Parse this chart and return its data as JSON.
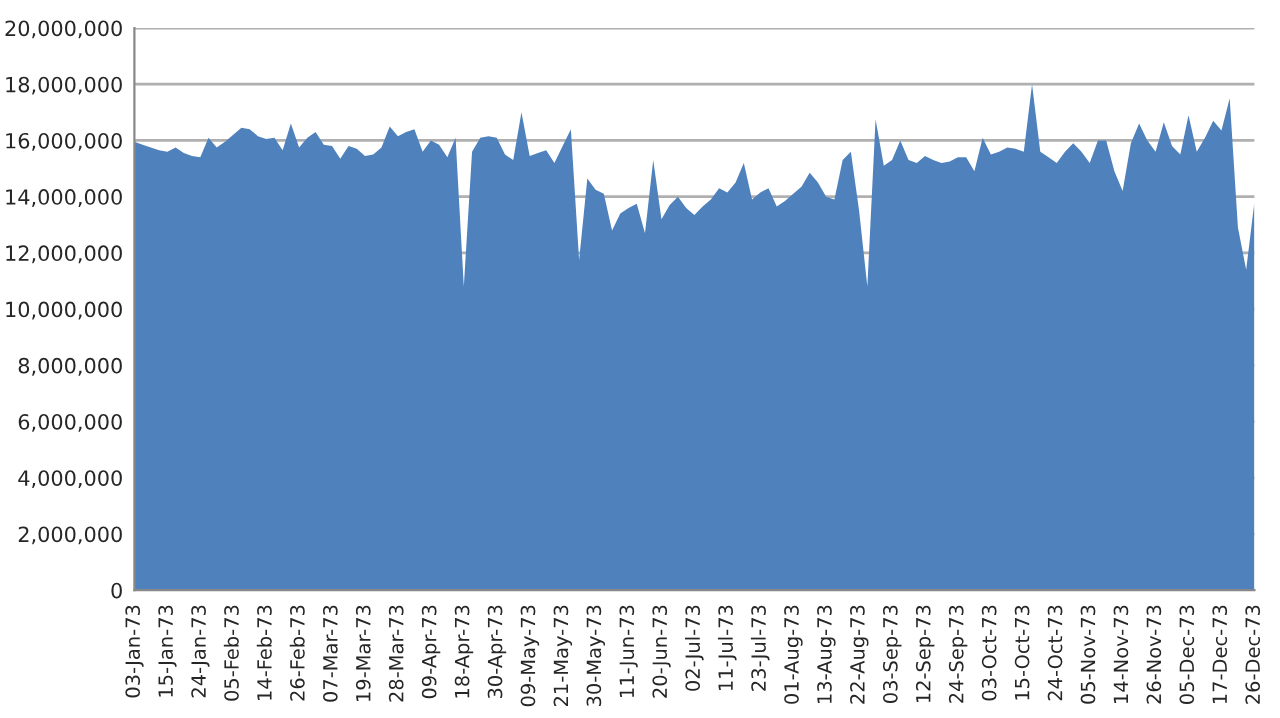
{
  "chart_data": {
    "type": "area",
    "categories": [
      "03-Jan-73",
      null,
      null,
      null,
      "15-Jan-73",
      null,
      null,
      null,
      "24-Jan-73",
      null,
      null,
      null,
      "05-Feb-73",
      null,
      null,
      null,
      "14-Feb-73",
      null,
      null,
      null,
      "26-Feb-73",
      null,
      null,
      null,
      "07-Mar-73",
      null,
      null,
      null,
      "19-Mar-73",
      null,
      null,
      null,
      "28-Mar-73",
      null,
      null,
      null,
      "09-Apr-73",
      null,
      null,
      null,
      "18-Apr-73",
      null,
      null,
      null,
      "30-Apr-73",
      null,
      null,
      null,
      "09-May-73",
      null,
      null,
      null,
      "21-May-73",
      null,
      null,
      null,
      "30-May-73",
      null,
      null,
      null,
      "11-Jun-73",
      null,
      null,
      null,
      "20-Jun-73",
      null,
      null,
      null,
      "02-Jul-73",
      null,
      null,
      null,
      "11-Jul-73",
      null,
      null,
      null,
      "23-Jul-73",
      null,
      null,
      null,
      "01-Aug-73",
      null,
      null,
      null,
      "13-Aug-73",
      null,
      null,
      null,
      "22-Aug-73",
      null,
      null,
      null,
      "03-Sep-73",
      null,
      null,
      null,
      "12-Sep-73",
      null,
      null,
      null,
      "24-Sep-73",
      null,
      null,
      null,
      "03-Oct-73",
      null,
      null,
      null,
      "15-Oct-73",
      null,
      null,
      null,
      "24-Oct-73",
      null,
      null,
      null,
      "05-Nov-73",
      null,
      null,
      null,
      "14-Nov-73",
      null,
      null,
      null,
      "26-Nov-73",
      null,
      null,
      null,
      "05-Dec-73",
      null,
      null,
      null,
      "17-Dec-73",
      null,
      null,
      null,
      "26-Dec-73"
    ],
    "series": [
      {
        "color": "#4f81bd",
        "values": [
          15950000,
          15850000,
          15750000,
          15650000,
          15600000,
          15750000,
          15550000,
          15450000,
          15400000,
          16100000,
          15750000,
          15950000,
          16200000,
          16450000,
          16400000,
          16150000,
          16050000,
          16100000,
          15650000,
          16600000,
          15750000,
          16100000,
          16300000,
          15850000,
          15800000,
          15350000,
          15800000,
          15700000,
          15450000,
          15500000,
          15750000,
          16500000,
          16150000,
          16300000,
          16400000,
          15600000,
          16000000,
          15850000,
          15400000,
          16100000,
          10800000,
          15600000,
          16100000,
          16150000,
          16100000,
          15500000,
          15300000,
          17000000,
          15450000,
          15550000,
          15650000,
          15200000,
          15800000,
          16400000,
          11750000,
          14650000,
          14250000,
          14100000,
          12800000,
          13400000,
          13600000,
          13750000,
          12700000,
          15300000,
          13200000,
          13700000,
          14000000,
          13600000,
          13350000,
          13650000,
          13900000,
          14300000,
          14150000,
          14500000,
          15200000,
          13900000,
          14150000,
          14300000,
          13650000,
          13850000,
          14100000,
          14350000,
          14850000,
          14500000,
          14000000,
          13900000,
          15300000,
          15600000,
          13500000,
          10800000,
          16750000,
          15100000,
          15300000,
          16000000,
          15300000,
          15200000,
          15450000,
          15300000,
          15200000,
          15250000,
          15400000,
          15400000,
          14900000,
          16100000,
          15500000,
          15600000,
          15750000,
          15700000,
          15600000,
          18000000,
          15600000,
          15400000,
          15200000,
          15600000,
          15900000,
          15600000,
          15200000,
          16000000,
          16000000,
          14900000,
          14200000,
          15900000,
          16600000,
          16000000,
          15600000,
          16650000,
          15800000,
          15500000,
          16900000,
          15600000,
          16100000,
          16700000,
          16350000,
          17500000,
          12900000,
          11400000,
          13800000
        ]
      }
    ],
    "ylim": [
      0,
      20000000
    ],
    "yticks": [
      0,
      {
        "value": 2000000,
        "label": "2,000,000"
      },
      {
        "value": 4000000,
        "label": "4,000,000"
      },
      {
        "value": 6000000,
        "label": "6,000,000"
      },
      {
        "value": 8000000,
        "label": "8,000,000"
      },
      {
        "value": 10000000,
        "label": "10,000,000"
      },
      {
        "value": 12000000,
        "label": "12,000,000"
      },
      {
        "value": 14000000,
        "label": "14,000,000"
      },
      {
        "value": 16000000,
        "label": "16,000,000"
      },
      {
        "value": 18000000,
        "label": "18,000,000"
      },
      {
        "value": 20000000,
        "label": "20,000,000"
      }
    ],
    "grid": "y"
  }
}
